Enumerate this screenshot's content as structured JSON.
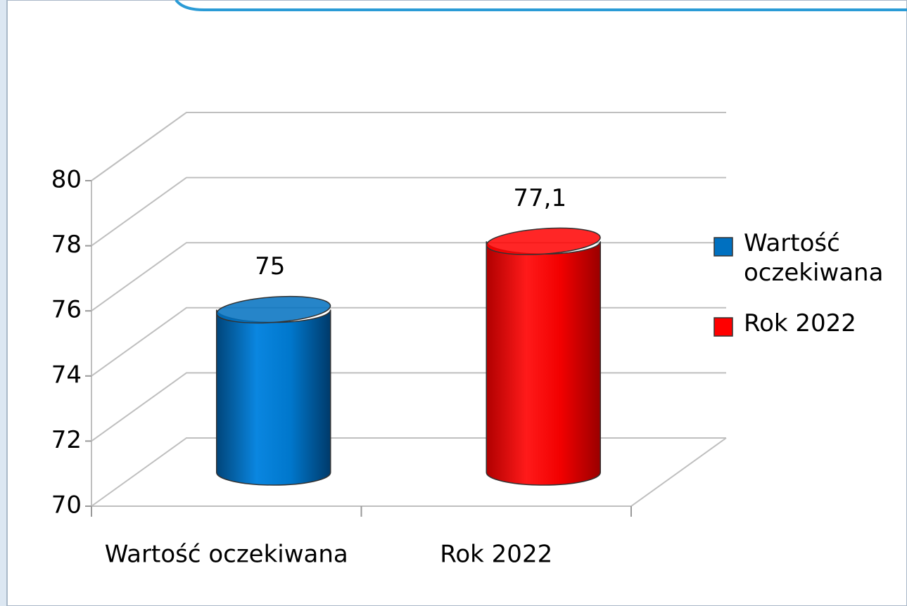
{
  "chart_data": {
    "type": "bar3d",
    "categories": [
      "Wartość oczekiwana",
      "Rok 2022"
    ],
    "series": [
      {
        "name": "Wartość oczekiwana",
        "color": "#0070c0",
        "values": [
          75,
          null
        ]
      },
      {
        "name": "Rok 2022",
        "color": "#ff0000",
        "values": [
          null,
          77.1
        ],
        "value_labels": [
          null,
          "77,1"
        ]
      }
    ],
    "ylim": [
      70,
      80
    ],
    "yticks": [
      70,
      72,
      74,
      76,
      78,
      80
    ],
    "grid": true,
    "legend": "right"
  }
}
